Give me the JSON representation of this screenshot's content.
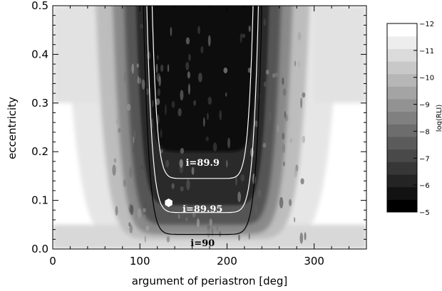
{
  "chart_data": {
    "type": "heatmap",
    "title": "",
    "xlabel": "argument of periastron [deg]",
    "ylabel": "eccentricity",
    "xlim": [
      0,
      360
    ],
    "ylim": [
      0.0,
      0.5
    ],
    "x_ticks": [
      0,
      100,
      200,
      300
    ],
    "y_ticks": [
      0.0,
      0.1,
      0.2,
      0.3,
      0.4,
      0.5
    ],
    "x_tick_labels": [
      "0",
      "100",
      "200",
      "300"
    ],
    "y_tick_labels": [
      "0.0",
      "0.1",
      "0.2",
      "0.3",
      "0.4",
      "0.5"
    ],
    "colorbar": {
      "label": "log(RLI)",
      "range": [
        -12,
        -5
      ],
      "ticks": [
        -12,
        -11,
        -10,
        -9,
        -8,
        -7,
        -6,
        -5
      ],
      "tick_labels": [
        "−12",
        "−11",
        "−10",
        "−9",
        "−8",
        "−7",
        "−6",
        "−5"
      ],
      "low_color": "#000000",
      "high_color": "#ffffff"
    },
    "contours": [
      {
        "label": "i=90",
        "color": "#000000",
        "min_e": 0.03,
        "center_deg": 172,
        "left_asymptote_deg": 108,
        "right_asymptote_deg": 247
      },
      {
        "label": "i=89.95",
        "color": "#ffffff",
        "min_e": 0.075,
        "center_deg": 172,
        "left_asymptote_deg": 112,
        "right_asymptote_deg": 243
      },
      {
        "label": "i=89.9",
        "color": "#ffffff",
        "min_e": 0.145,
        "center_deg": 172,
        "left_asymptote_deg": 118,
        "right_asymptote_deg": 237
      }
    ],
    "marker": {
      "shape": "hexagon",
      "x": 133,
      "y": 0.095,
      "color": "#ffffff"
    }
  }
}
